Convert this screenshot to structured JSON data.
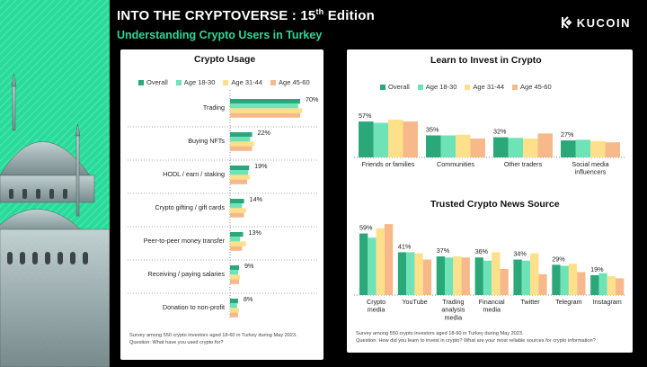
{
  "header": {
    "title_main": "INTO THE CRYPTOVERSE : 15",
    "title_ordinal": "th",
    "title_tail": " Edition",
    "subtitle": "Understanding Crypto Users in Turkey",
    "logo_text": "KUCOIN"
  },
  "colors": {
    "overall": "#2aa87a",
    "age_18_30": "#6fe3b8",
    "age_31_44": "#ffe08a",
    "age_45_60": "#f7b98a",
    "accent": "#2bd99a"
  },
  "legend": [
    "Overall",
    "Age 18-30",
    "Age 31-44",
    "Age 45-60"
  ],
  "left_panel": {
    "title": "Crypto Usage",
    "note_line1": "Survey among 550 crypto investors aged 18-60 in Turkey during May 2023.",
    "note_line2": "Question: What have you used crypto for?"
  },
  "right_panel": {
    "note_line1": "Survey among 550 crypto investors aged 18-60 in Turkey during May 2023.",
    "note_line2": "Question: How did you learn to invest in crypto? What are your most reliable sources for crypto information?"
  },
  "chart_data": [
    {
      "type": "bar",
      "orientation": "horizontal",
      "title": "Crypto Usage",
      "categories": [
        "Trading",
        "Buying NFTs",
        "HODL / earn / staking",
        "Crypto gifting / gift cards",
        "Peer-to-peer money transfer",
        "Receiving / paying salaries",
        "Donation to non-profit"
      ],
      "value_labels": [
        "70%",
        "22%",
        "19%",
        "14%",
        "13%",
        "9%",
        "8%"
      ],
      "series": [
        {
          "name": "Overall",
          "values": [
            70,
            22,
            19,
            14,
            13,
            9,
            8
          ]
        },
        {
          "name": "Age 18-30",
          "values": [
            68,
            20,
            18,
            12,
            10,
            8,
            7
          ]
        },
        {
          "name": "Age 31-44",
          "values": [
            72,
            24,
            20,
            16,
            16,
            10,
            9
          ]
        },
        {
          "name": "Age 45-60",
          "values": [
            70,
            22,
            17,
            14,
            12,
            9,
            8
          ]
        }
      ],
      "xlim": [
        0,
        80
      ]
    },
    {
      "type": "bar",
      "title": "Learn to Invest in Crypto",
      "categories": [
        "Friends or families",
        "Communities",
        "Other traders",
        "Social media influencers"
      ],
      "value_labels": [
        "57%",
        "35%",
        "32%",
        "27%"
      ],
      "series": [
        {
          "name": "Overall",
          "values": [
            57,
            35,
            32,
            27
          ]
        },
        {
          "name": "Age 18-30",
          "values": [
            55,
            35,
            31,
            28
          ]
        },
        {
          "name": "Age 31-44",
          "values": [
            60,
            36,
            30,
            26
          ]
        },
        {
          "name": "Age 45-60",
          "values": [
            57,
            30,
            38,
            24
          ]
        }
      ],
      "ylim": [
        0,
        70
      ]
    },
    {
      "type": "bar",
      "title": "Trusted Crypto News Source",
      "categories": [
        "Crypto media",
        "YouTube",
        "Trading analysis media",
        "Financial media",
        "Twitter",
        "Telegram",
        "Instagram"
      ],
      "value_labels": [
        "59%",
        "41%",
        "37%",
        "36%",
        "34%",
        "29%",
        "19%"
      ],
      "series": [
        {
          "name": "Overall",
          "values": [
            59,
            41,
            37,
            36,
            34,
            29,
            19
          ]
        },
        {
          "name": "Age 18-30",
          "values": [
            55,
            41,
            36,
            33,
            33,
            28,
            21
          ]
        },
        {
          "name": "Age 31-44",
          "values": [
            64,
            40,
            37,
            41,
            40,
            30,
            18
          ]
        },
        {
          "name": "Age 45-60",
          "values": [
            68,
            34,
            36,
            25,
            20,
            22,
            16
          ]
        }
      ],
      "ylim": [
        0,
        70
      ]
    }
  ]
}
